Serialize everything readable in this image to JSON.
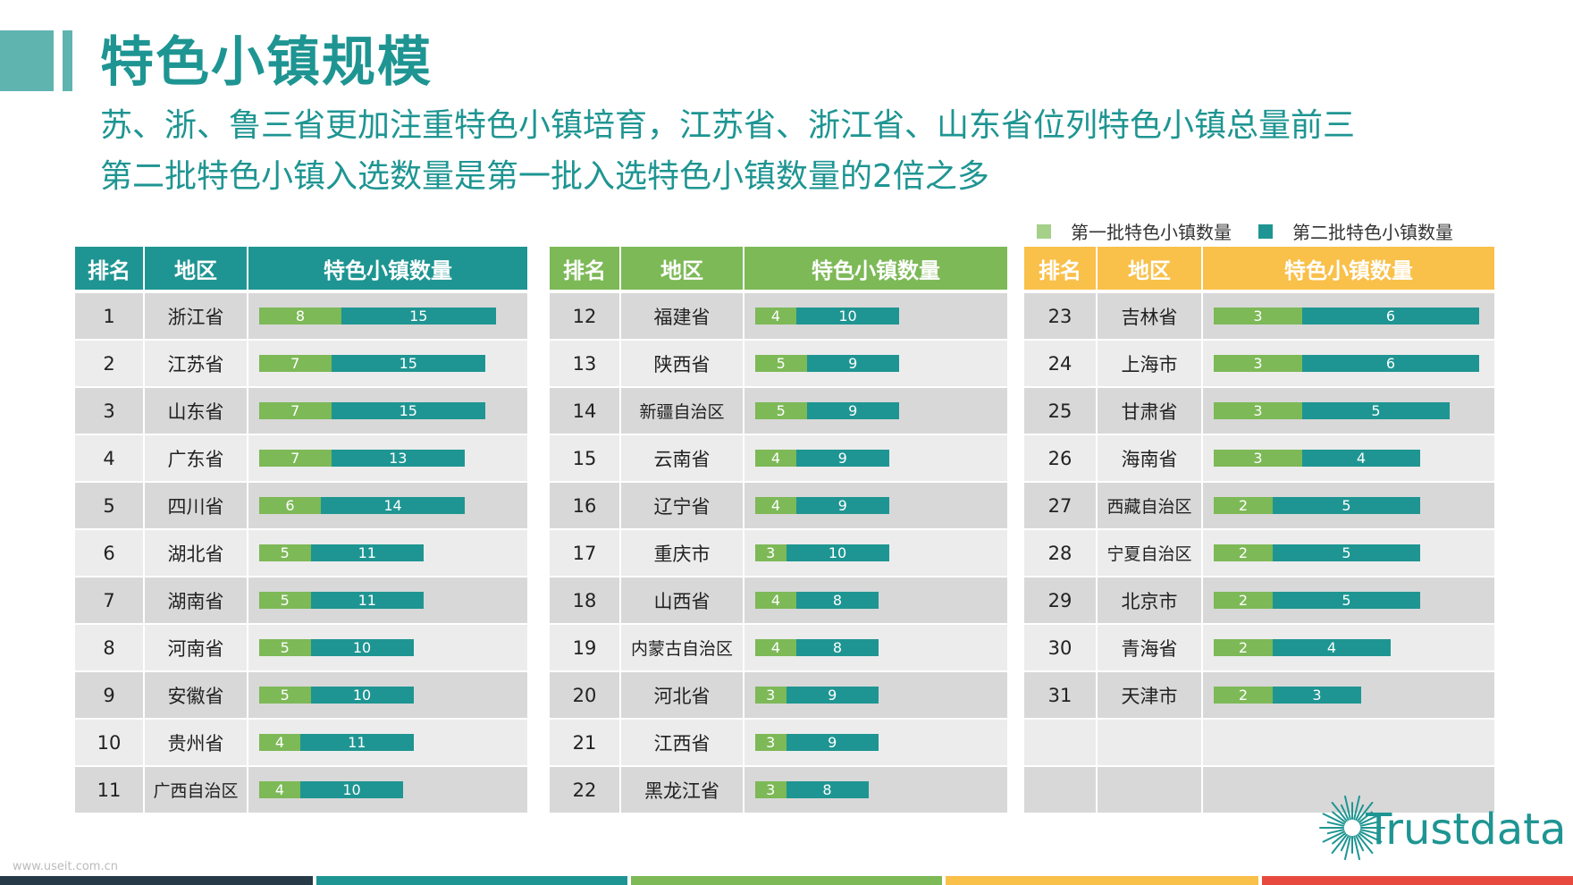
{
  "title": "特色小镇规模",
  "subtitle_lines": [
    "苏、浙、鲁三省更加注重特色小镇培育，江苏省、浙江省、山东省位列特色小镇总量前三",
    "第二批特色小镇入选数量是第一批入选特色小镇数量的2倍之多"
  ],
  "legend": {
    "series1": "第一批特色小镇数量",
    "series2": "第二批特色小镇数量"
  },
  "colors": {
    "teal": "#1e9592",
    "green": "#7db957",
    "orange": "#f9c04a",
    "header1": "#1e9592",
    "header2": "#7db957",
    "header3": "#f9c04a"
  },
  "headers": {
    "rank": "排名",
    "region": "地区",
    "count": "特色小镇数量"
  },
  "logo_text": "Trustdata",
  "watermark": "www.useit.com.cn",
  "chart_data": {
    "type": "bar",
    "stacked": true,
    "orientation": "horizontal",
    "title": "特色小镇规模",
    "series": [
      {
        "name": "第一批特色小镇数量",
        "color": "#7db957"
      },
      {
        "name": "第二批特色小镇数量",
        "color": "#1e9592"
      }
    ],
    "rows": [
      {
        "rank": "1",
        "region": "浙江省",
        "first": 8,
        "second": 15
      },
      {
        "rank": "2",
        "region": "江苏省",
        "first": 7,
        "second": 15
      },
      {
        "rank": "3",
        "region": "山东省",
        "first": 7,
        "second": 15
      },
      {
        "rank": "4",
        "region": "广东省",
        "first": 7,
        "second": 13
      },
      {
        "rank": "5",
        "region": "四川省",
        "first": 6,
        "second": 14
      },
      {
        "rank": "6",
        "region": "湖北省",
        "first": 5,
        "second": 11
      },
      {
        "rank": "7",
        "region": "湖南省",
        "first": 5,
        "second": 11
      },
      {
        "rank": "8",
        "region": "河南省",
        "first": 5,
        "second": 10
      },
      {
        "rank": "9",
        "region": "安徽省",
        "first": 5,
        "second": 10
      },
      {
        "rank": "10",
        "region": "贵州省",
        "first": 4,
        "second": 11
      },
      {
        "rank": "11",
        "region": "广西自治区",
        "first": 4,
        "second": 10
      },
      {
        "rank": "12",
        "region": "福建省",
        "first": 4,
        "second": 10
      },
      {
        "rank": "13",
        "region": "陕西省",
        "first": 5,
        "second": 9
      },
      {
        "rank": "14",
        "region": "新疆自治区",
        "first": 5,
        "second": 9
      },
      {
        "rank": "15",
        "region": "云南省",
        "first": 4,
        "second": 9
      },
      {
        "rank": "16",
        "region": "辽宁省",
        "first": 4,
        "second": 9
      },
      {
        "rank": "17",
        "region": "重庆市",
        "first": 3,
        "second": 10
      },
      {
        "rank": "18",
        "region": "山西省",
        "first": 4,
        "second": 8
      },
      {
        "rank": "19",
        "region": "内蒙古自治区",
        "first": 4,
        "second": 8
      },
      {
        "rank": "20",
        "region": "河北省",
        "first": 3,
        "second": 9
      },
      {
        "rank": "21",
        "region": "江西省",
        "first": 3,
        "second": 9
      },
      {
        "rank": "22",
        "region": "黑龙江省",
        "first": 3,
        "second": 8
      },
      {
        "rank": "23",
        "region": "吉林省",
        "first": 3,
        "second": 6
      },
      {
        "rank": "24",
        "region": "上海市",
        "first": 3,
        "second": 6
      },
      {
        "rank": "25",
        "region": "甘肃省",
        "first": 3,
        "second": 5
      },
      {
        "rank": "26",
        "region": "海南省",
        "first": 3,
        "second": 4
      },
      {
        "rank": "27",
        "region": "西藏自治区",
        "first": 2,
        "second": 5
      },
      {
        "rank": "28",
        "region": "宁夏自治区",
        "first": 2,
        "second": 5
      },
      {
        "rank": "29",
        "region": "北京市",
        "first": 2,
        "second": 5
      },
      {
        "rank": "30",
        "region": "青海省",
        "first": 2,
        "second": 4
      },
      {
        "rank": "31",
        "region": "天津市",
        "first": 2,
        "second": 3
      }
    ]
  }
}
